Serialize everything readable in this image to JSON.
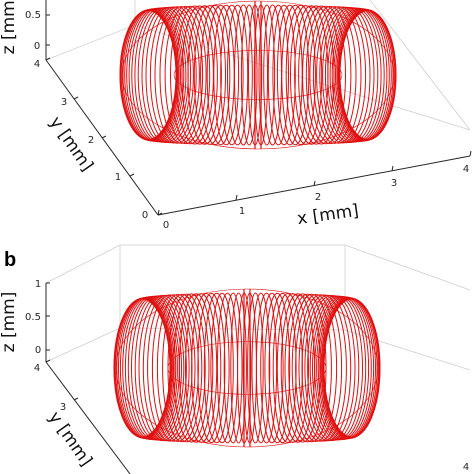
{
  "colors": {
    "coil": "#e01010",
    "box": "#cfcfcf",
    "axis": "#262626"
  },
  "panels": [
    {
      "label": "",
      "zlabel": "z [mm]",
      "zticks": [
        "0.5",
        "0"
      ],
      "ylabel": "y [mm]",
      "yticks": [
        "0",
        "1",
        "2",
        "3",
        "4"
      ],
      "xlabel": "x [mm]",
      "xticks": [
        "0",
        "1",
        "2",
        "3",
        "4"
      ]
    },
    {
      "label": "b",
      "zlabel": "z [mm]",
      "zticks": [
        "1",
        "0.5",
        "0"
      ],
      "ylabel": "y [mm]",
      "yticks": [
        "4",
        "3"
      ],
      "xlabel": "",
      "xticks": [
        "4"
      ]
    }
  ]
}
